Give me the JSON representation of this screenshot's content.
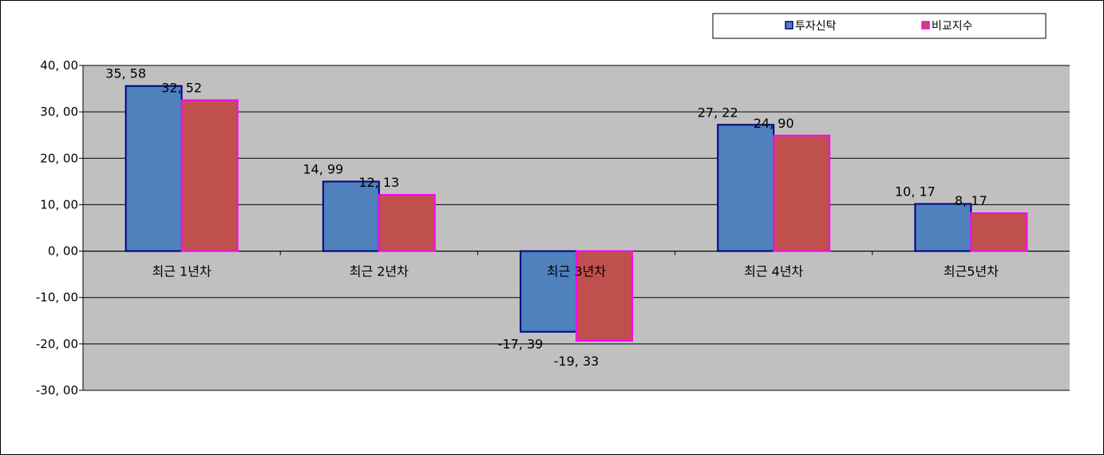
{
  "chart_data": {
    "type": "bar",
    "categories": [
      "최근 1년차",
      "최근 2년차",
      "최근 3년차",
      "최근 4년차",
      "최근5년차"
    ],
    "series": [
      {
        "name": "투자신탁",
        "values": [
          35.58,
          14.99,
          -17.39,
          27.22,
          10.17
        ],
        "labels": [
          "35, 58",
          "14, 99",
          "-17, 39",
          "27, 22",
          "10, 17"
        ],
        "color": "#4f81bd",
        "border_color": "#000080"
      },
      {
        "name": "비교지수",
        "values": [
          32.52,
          12.13,
          -19.33,
          24.9,
          8.17
        ],
        "labels": [
          "32, 52",
          "12, 13",
          "-19, 33",
          "24, 90",
          "8, 17"
        ],
        "color": "#c0504d",
        "border_color": "#ff00ff"
      }
    ],
    "ylim": [
      -30,
      40
    ],
    "yticks": [
      40,
      30,
      20,
      10,
      0,
      -10,
      -20,
      -30
    ],
    "ytick_labels": [
      "40, 00",
      "30, 00",
      "20, 00",
      "10, 00",
      "0, 00",
      "-10, 00",
      "-20, 00",
      "-30, 00"
    ],
    "plot_background": "#c0c0c0",
    "grid": true,
    "legend_position": "top-right"
  }
}
